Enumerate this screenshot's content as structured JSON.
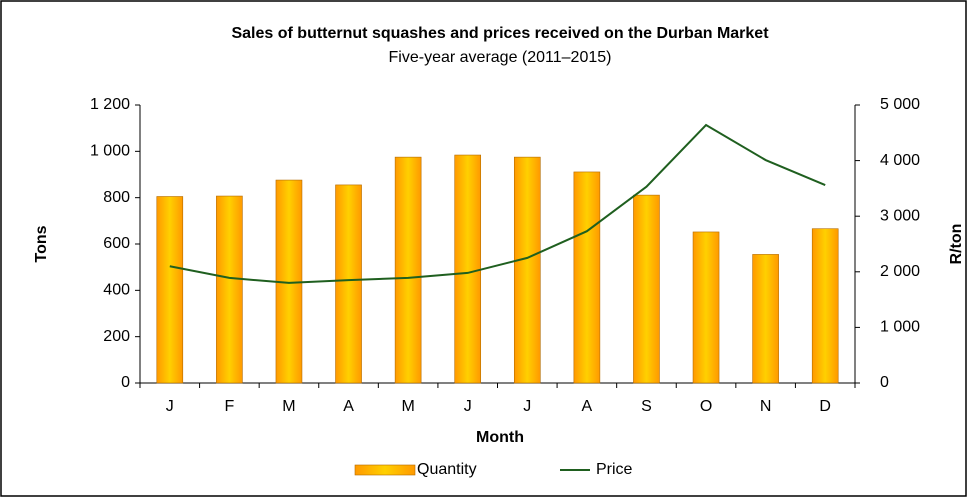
{
  "chart_data": {
    "type": "bar-line",
    "title": "Sales of butternut squashes and prices received on the Durban Market",
    "subtitle": "Five-year average (2011–2015)",
    "x_label": "Month",
    "y_label": "Tons",
    "y2_label": "R/ton",
    "categories": [
      "J",
      "F",
      "M",
      "A",
      "M",
      "J",
      "J",
      "A",
      "S",
      "O",
      "N",
      "D"
    ],
    "series": [
      {
        "name": "Quantity",
        "type": "bar",
        "color": "#ff9900",
        "values": [
          805,
          807,
          876,
          855,
          975,
          984,
          975,
          911,
          811,
          652,
          555,
          666
        ]
      },
      {
        "name": "Price",
        "type": "line",
        "axis": "y2",
        "color": "#1f5f1f",
        "values": [
          2100,
          1890,
          1800,
          1850,
          1890,
          1980,
          2250,
          2730,
          3530,
          4640,
          4010,
          3560
        ]
      }
    ],
    "ylim": [
      0,
      1200
    ],
    "yticks": [
      0,
      200,
      400,
      600,
      800,
      {
        "value": 1000,
        "label": "1 000"
      },
      {
        "value": 1200,
        "label": "1 200"
      }
    ],
    "y2lim": [
      0,
      5000
    ],
    "y2ticks": [
      0,
      {
        "value": 1000,
        "label": "1 000"
      },
      {
        "value": 2000,
        "label": "2 000"
      },
      {
        "value": 3000,
        "label": "3 000"
      },
      {
        "value": 4000,
        "label": "4 000"
      },
      {
        "value": 5000,
        "label": "5 000"
      }
    ]
  }
}
